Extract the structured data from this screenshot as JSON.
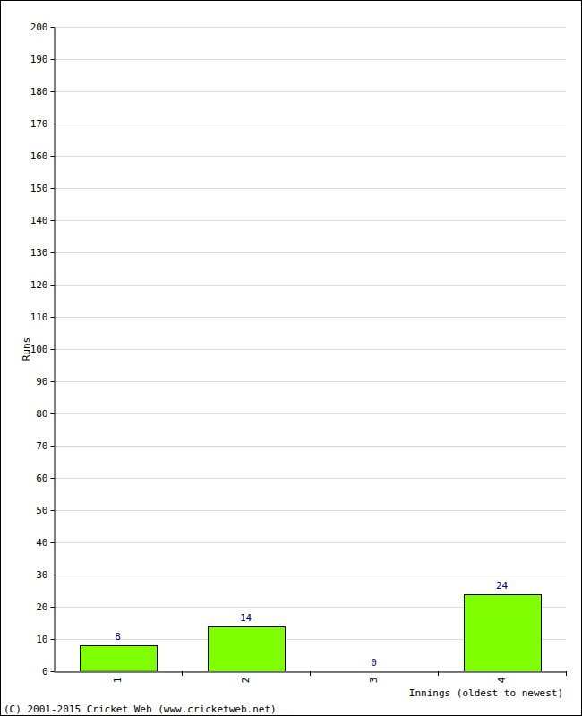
{
  "chart_data": {
    "type": "bar",
    "categories": [
      "1",
      "2",
      "3",
      "4"
    ],
    "values": [
      8,
      14,
      0,
      24
    ],
    "color": "#80ff00",
    "ylim": [
      0,
      200
    ],
    "yticks": [
      0,
      10,
      20,
      30,
      40,
      50,
      60,
      70,
      80,
      90,
      100,
      110,
      120,
      130,
      140,
      150,
      160,
      170,
      180,
      190,
      200
    ],
    "grid": true,
    "data_labels": true,
    "x_label": "Innings (oldest to newest)",
    "y_label": "Runs",
    "annotations": [
      "(C) 2001-2015 Cricket Web (www.cricketweb.net)"
    ]
  }
}
